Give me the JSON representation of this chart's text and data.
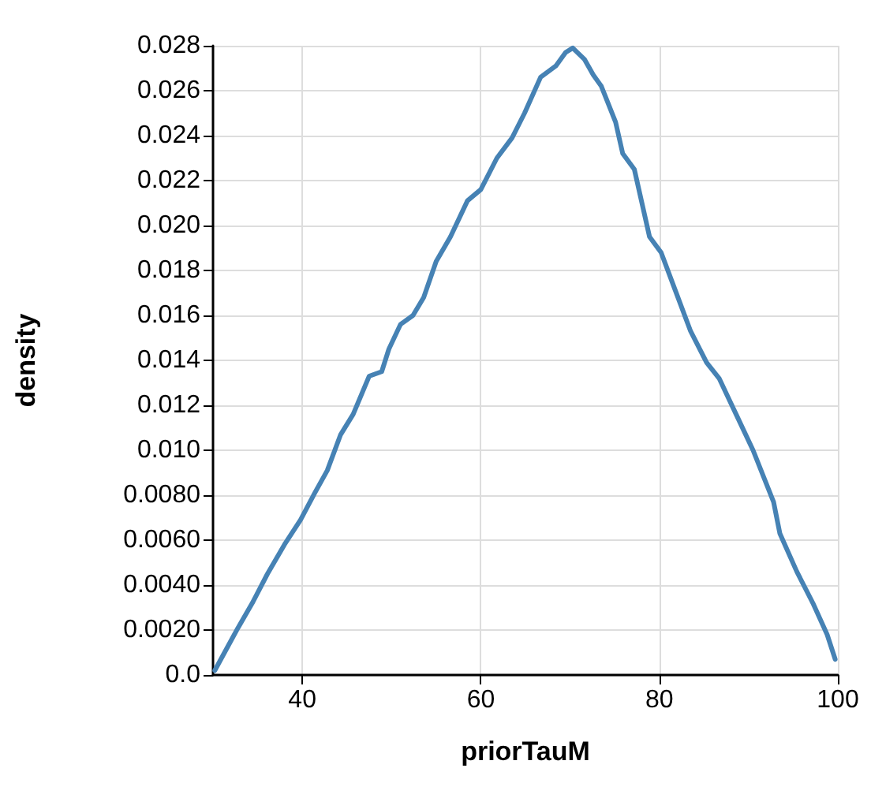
{
  "chart_data": {
    "type": "line",
    "xlabel": "priorTauM",
    "ylabel": "density",
    "xlim": [
      30,
      100
    ],
    "xticks": [
      40,
      60,
      80,
      100
    ],
    "ylim": [
      0,
      0.028
    ],
    "yticks": [
      {
        "value": 0,
        "label": "0.0"
      },
      {
        "value": 0.002,
        "label": "0.0020"
      },
      {
        "value": 0.004,
        "label": "0.0040"
      },
      {
        "value": 0.006,
        "label": "0.0060"
      },
      {
        "value": 0.008,
        "label": "0.0080"
      },
      {
        "value": 0.01,
        "label": "0.010"
      },
      0.012,
      0.014,
      0.016,
      0.018,
      {
        "value": 0.02,
        "label": "0.020"
      },
      0.022,
      0.024,
      0.026,
      0.028
    ],
    "grid": true,
    "marker": "none",
    "line_style": "solid",
    "series": [
      {
        "color": "#4682b4",
        "x": [
          30.2,
          31.7,
          32.8,
          34.4,
          36.1,
          38.0,
          39.8,
          41.4,
          42.8,
          44.3,
          45.7,
          47.5,
          48.9,
          49.7,
          51.0,
          52.4,
          53.6,
          55.0,
          56.6,
          58.5,
          60.0,
          61.8,
          63.5,
          64.9,
          66.7,
          68.4,
          69.5,
          70.3,
          71.6,
          72.6,
          73.5,
          75.1,
          75.9,
          77.2,
          78.9,
          80.2,
          81.8,
          83.5,
          85.3,
          86.7,
          88.6,
          90.5,
          92.8,
          93.5,
          95.4,
          97.2,
          98.8,
          99.7
        ],
        "values": [
          0.0002,
          0.0013,
          0.0021,
          0.0032,
          0.0045,
          0.0058,
          0.0069,
          0.0081,
          0.0091,
          0.0107,
          0.0116,
          0.0133,
          0.0135,
          0.0145,
          0.0156,
          0.016,
          0.0168,
          0.0184,
          0.0195,
          0.0211,
          0.0216,
          0.023,
          0.0239,
          0.025,
          0.0266,
          0.0271,
          0.0277,
          0.0279,
          0.0274,
          0.0267,
          0.0262,
          0.0246,
          0.0232,
          0.0225,
          0.0195,
          0.0188,
          0.0171,
          0.0153,
          0.0139,
          0.0132,
          0.0116,
          0.01,
          0.0077,
          0.0063,
          0.0046,
          0.0032,
          0.0018,
          0.0007
        ]
      }
    ]
  }
}
